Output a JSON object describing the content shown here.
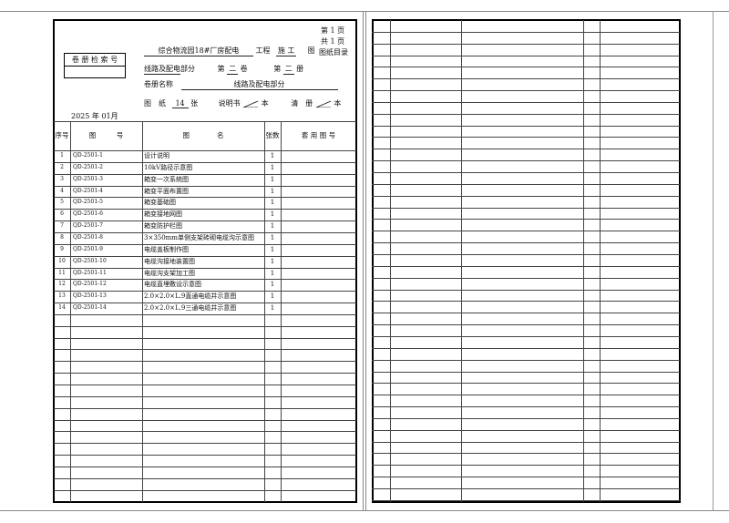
{
  "header": {
    "page_no": "第 1 页",
    "page_total": "共 1 页",
    "doc_type": "图纸目录",
    "project_name": "综合物流园18#厂房配电",
    "project_suffix": "工程",
    "stage": "施 工",
    "stage_suffix": "图",
    "part_name": "线路及配电",
    "part_suffix": "部分",
    "volume_prefix": "第",
    "volume_no": "二",
    "volume_suffix": "卷",
    "book_prefix": "第",
    "book_no": "二",
    "book_suffix": "册",
    "volume_name_label": "卷册名称",
    "volume_name": "线路及配电部分",
    "drawings_label": "图　纸",
    "drawings_count": "14",
    "drawings_unit": "张",
    "manual_label": "说明书",
    "manual_unit": "本",
    "list_label": "清　册",
    "list_unit": "本",
    "date": "2025 年 01月",
    "retrieval_label": "卷 册 检 索 号",
    "retrieval_value": ""
  },
  "table": {
    "columns": [
      "序号",
      "图　　　号",
      "图　　　　名",
      "张数",
      "套 用 图 号"
    ],
    "rows": [
      {
        "no": "1",
        "code": "QD-2501-1",
        "name": "设计说明",
        "sheets": "1",
        "ref": ""
      },
      {
        "no": "2",
        "code": "QD-2501-2",
        "name": "10kV路径示意图",
        "sheets": "1",
        "ref": ""
      },
      {
        "no": "3",
        "code": "QD-2501-3",
        "name": "箱变一次系统图",
        "sheets": "1",
        "ref": ""
      },
      {
        "no": "4",
        "code": "QD-2501-4",
        "name": "箱变平面布置图",
        "sheets": "1",
        "ref": ""
      },
      {
        "no": "5",
        "code": "QD-2501-5",
        "name": "箱变基础图",
        "sheets": "1",
        "ref": ""
      },
      {
        "no": "6",
        "code": "QD-2501-6",
        "name": "箱变接地网图",
        "sheets": "1",
        "ref": ""
      },
      {
        "no": "7",
        "code": "QD-2501-7",
        "name": "箱变防护栏图",
        "sheets": "1",
        "ref": ""
      },
      {
        "no": "8",
        "code": "QD-2501-8",
        "name": "3×350mm单侧支架砖砌电缆沟示意图",
        "sheets": "1",
        "ref": ""
      },
      {
        "no": "9",
        "code": "QD-2501-9",
        "name": "电缆盖板制作图",
        "sheets": "1",
        "ref": ""
      },
      {
        "no": "10",
        "code": "QD-2501-10",
        "name": "电缆沟接地装置图",
        "sheets": "1",
        "ref": ""
      },
      {
        "no": "11",
        "code": "QD-2501-11",
        "name": "电缆沟支架加工图",
        "sheets": "1",
        "ref": ""
      },
      {
        "no": "12",
        "code": "QD-2501-12",
        "name": "电缆直埋敷设示意图",
        "sheets": "1",
        "ref": ""
      },
      {
        "no": "13",
        "code": "QD-2501-13",
        "name": "2.0×2.0×L.9直通电缆井示意图",
        "sheets": "1",
        "ref": ""
      },
      {
        "no": "14",
        "code": "QD-2501-14",
        "name": "2.0×2.0×L.9三通电缆井示意图",
        "sheets": "1",
        "ref": ""
      }
    ]
  }
}
